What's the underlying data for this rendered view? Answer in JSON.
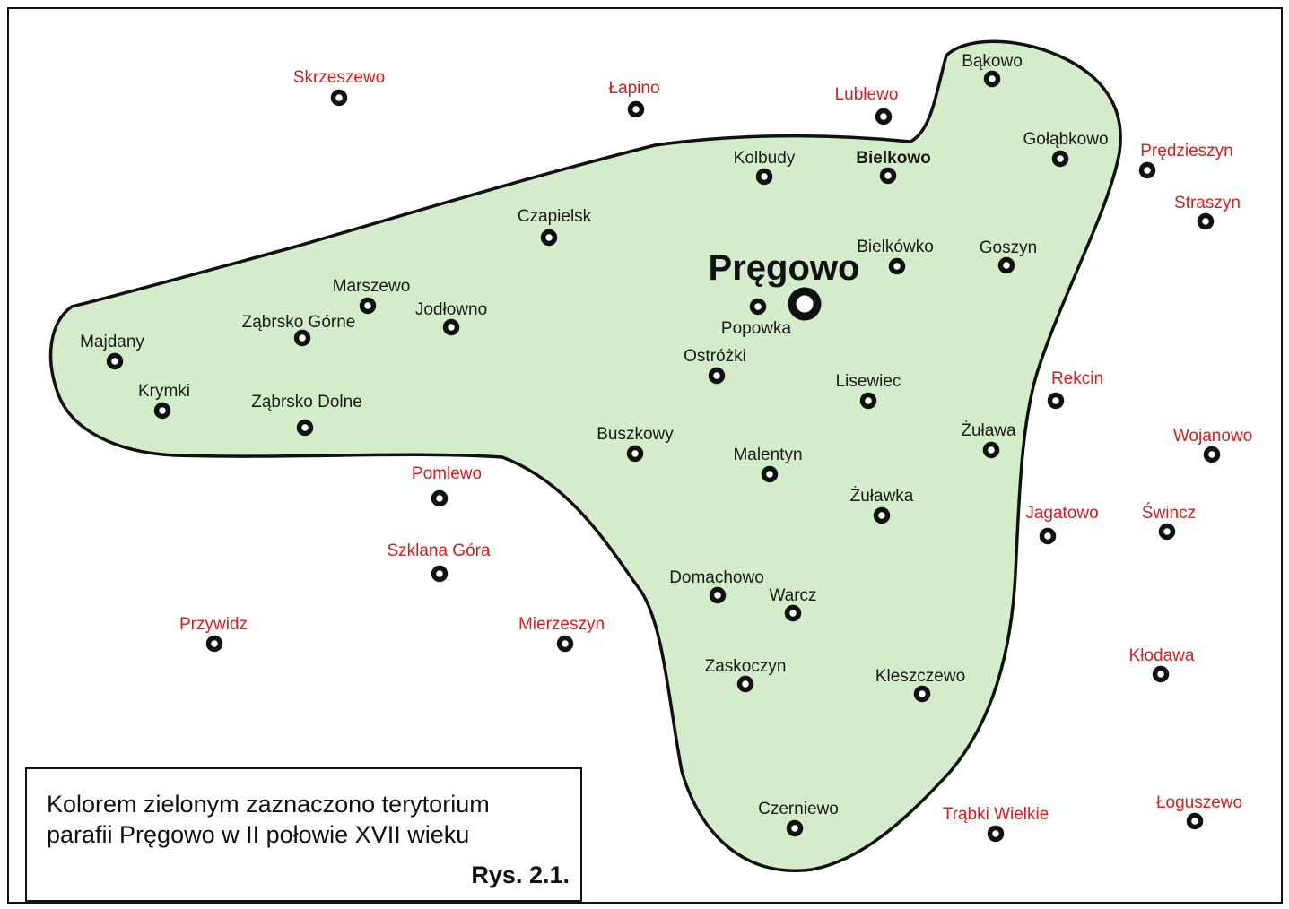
{
  "map": {
    "territory_color": "#d3ecc9",
    "inside_text_color": "#1a1a1a",
    "outside_text_color": "#d61f1f",
    "main_label": "Pręgowo",
    "places_inside": [
      {
        "name": "Bąkowo"
      },
      {
        "name": "Gołąbkowo"
      },
      {
        "name": "Kolbudy"
      },
      {
        "name": "Bielkowo",
        "bold": true
      },
      {
        "name": "Czapielsk"
      },
      {
        "name": "Bielkówko"
      },
      {
        "name": "Goszyn"
      },
      {
        "name": "Marszewo"
      },
      {
        "name": "Jodłowno"
      },
      {
        "name": "Ząbrsko Górne"
      },
      {
        "name": "Popowka"
      },
      {
        "name": "Majdany"
      },
      {
        "name": "Ostróżki"
      },
      {
        "name": "Krymki"
      },
      {
        "name": "Ząbrsko Dolne"
      },
      {
        "name": "Lisewiec"
      },
      {
        "name": "Żuława"
      },
      {
        "name": "Buszkowy"
      },
      {
        "name": "Malentyn"
      },
      {
        "name": "Żuławka"
      },
      {
        "name": "Domachowo"
      },
      {
        "name": "Warcz"
      },
      {
        "name": "Zaskoczyn"
      },
      {
        "name": "Kleszczewo"
      },
      {
        "name": "Czerniewo"
      }
    ],
    "places_outside": [
      {
        "name": "Skrzeszewo"
      },
      {
        "name": "Łapino"
      },
      {
        "name": "Lublewo"
      },
      {
        "name": "Prędzieszyn"
      },
      {
        "name": "Straszyn"
      },
      {
        "name": "Rekcin"
      },
      {
        "name": "Wojanowo"
      },
      {
        "name": "Pomlewo"
      },
      {
        "name": "Jagatowo"
      },
      {
        "name": "Świncz"
      },
      {
        "name": "Szklana Góra"
      },
      {
        "name": "Przywidz"
      },
      {
        "name": "Mierzeszyn"
      },
      {
        "name": "Kłodawa"
      },
      {
        "name": "Trąbki Wielkie"
      },
      {
        "name": "Łoguszewo"
      }
    ]
  },
  "legend": {
    "line1": "Kolorem zielonym zaznaczono terytorium",
    "line2": "parafii Pręgowo w II połowie  XVII wieku",
    "figure": "Rys. 2.1."
  }
}
